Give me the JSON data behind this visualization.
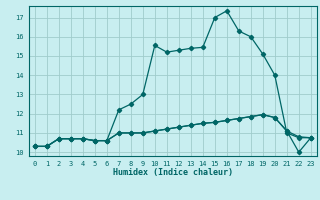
{
  "xlabel": "Humidex (Indice chaleur)",
  "bg_color": "#c8eef0",
  "grid_color": "#a0cccc",
  "line_color": "#006666",
  "xlim": [
    -0.5,
    23.5
  ],
  "ylim": [
    9.8,
    17.6
  ],
  "yticks": [
    10,
    11,
    12,
    13,
    14,
    15,
    16,
    17
  ],
  "xticks": [
    0,
    1,
    2,
    3,
    4,
    5,
    6,
    7,
    8,
    9,
    10,
    11,
    12,
    13,
    14,
    15,
    16,
    17,
    18,
    19,
    20,
    21,
    22,
    23
  ],
  "line1_x": [
    0,
    1,
    2,
    3,
    4,
    5,
    6,
    7,
    8,
    9,
    10,
    11,
    12,
    13,
    14,
    15,
    16,
    17,
    18,
    19,
    20,
    21,
    22,
    23
  ],
  "line1_y": [
    10.3,
    10.3,
    10.7,
    10.7,
    10.7,
    10.6,
    10.6,
    11.0,
    11.0,
    11.0,
    11.1,
    11.2,
    11.3,
    11.4,
    11.5,
    11.55,
    11.65,
    11.75,
    11.85,
    11.95,
    11.8,
    11.1,
    10.8,
    10.75
  ],
  "line2_x": [
    0,
    1,
    2,
    3,
    4,
    5,
    6,
    7,
    8,
    9,
    10,
    11,
    12,
    13,
    14,
    15,
    16,
    17,
    18,
    19,
    20,
    21,
    22,
    23
  ],
  "line2_y": [
    10.3,
    10.3,
    10.7,
    10.7,
    10.7,
    10.6,
    10.6,
    12.2,
    12.5,
    13.0,
    15.55,
    15.2,
    15.3,
    15.4,
    15.45,
    17.0,
    17.35,
    16.3,
    16.0,
    15.1,
    14.0,
    11.0,
    10.75,
    10.75
  ],
  "line3_x": [
    0,
    1,
    2,
    3,
    4,
    5,
    6,
    7,
    8,
    9,
    10,
    11,
    12,
    13,
    14,
    15,
    16,
    17,
    18,
    19,
    20,
    21,
    22,
    23
  ],
  "line3_y": [
    10.3,
    10.3,
    10.7,
    10.7,
    10.7,
    10.6,
    10.6,
    11.0,
    11.0,
    11.0,
    11.1,
    11.2,
    11.3,
    11.4,
    11.5,
    11.55,
    11.65,
    11.75,
    11.85,
    11.95,
    11.8,
    11.1,
    10.0,
    10.75
  ],
  "xlabel_fontsize": 6,
  "tick_fontsize": 5
}
